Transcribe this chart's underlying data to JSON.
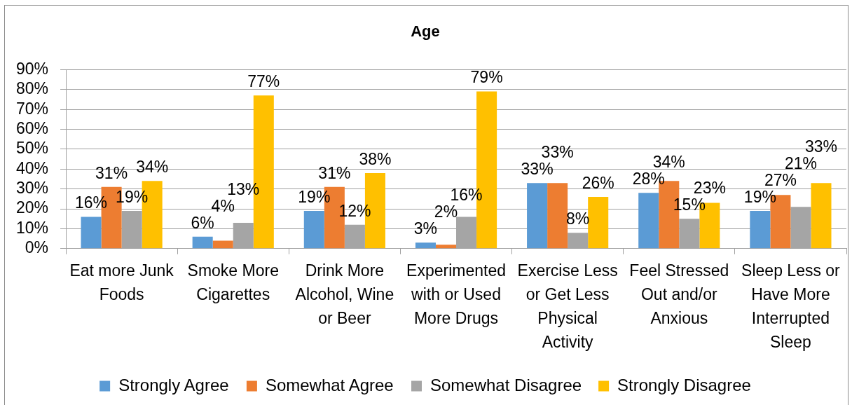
{
  "chart_data": {
    "type": "bar",
    "title": "Age",
    "categories": [
      "Eat more Junk Foods",
      "Smoke More Cigarettes",
      "Drink More Alcohol, Wine or Beer",
      "Experimented with or Used More Drugs",
      "Exercise Less or Get Less Physical Activity",
      "Feel Stressed Out and/or Anxious",
      "Sleep Less or Have More Interrupted Sleep"
    ],
    "series": [
      {
        "name": "Strongly Agree",
        "color": "#5b9bd5",
        "values": [
          16,
          6,
          19,
          3,
          33,
          28,
          19
        ],
        "value_labels": [
          "16%",
          "6%",
          "19%",
          "3%",
          "33%",
          "28%",
          "19%"
        ]
      },
      {
        "name": "Somewhat Agree",
        "color": "#ed7d31",
        "values": [
          31,
          4,
          31,
          2,
          33,
          34,
          27
        ],
        "value_labels": [
          "31%",
          "4%",
          "31%",
          "2%",
          "33%",
          "34%",
          "27%"
        ]
      },
      {
        "name": "Somewhat Disagree",
        "color": "#a5a5a5",
        "values": [
          19,
          13,
          12,
          16,
          8,
          15,
          21
        ],
        "value_labels": [
          "19%",
          "13%",
          "12%",
          "16%",
          "8%",
          "15%",
          "21%"
        ]
      },
      {
        "name": "Strongly Disagree",
        "color": "#ffc000",
        "values": [
          34,
          77,
          38,
          79,
          26,
          23,
          33
        ],
        "value_labels": [
          "34%",
          "77%",
          "38%",
          "79%",
          "26%",
          "23%",
          "33%"
        ]
      }
    ],
    "ylim": [
      0,
      90
    ],
    "yticks": [
      {
        "value": 0,
        "label": "0%"
      },
      {
        "value": 10,
        "label": "10%"
      },
      {
        "value": 20,
        "label": "20%"
      },
      {
        "value": 30,
        "label": "30%"
      },
      {
        "value": 40,
        "label": "40%"
      },
      {
        "value": 50,
        "label": "50%"
      },
      {
        "value": 60,
        "label": "60%"
      },
      {
        "value": 70,
        "label": "70%"
      },
      {
        "value": 80,
        "label": "80%"
      },
      {
        "value": 90,
        "label": "90%"
      }
    ],
    "grid": "y",
    "legend": "bottom"
  }
}
